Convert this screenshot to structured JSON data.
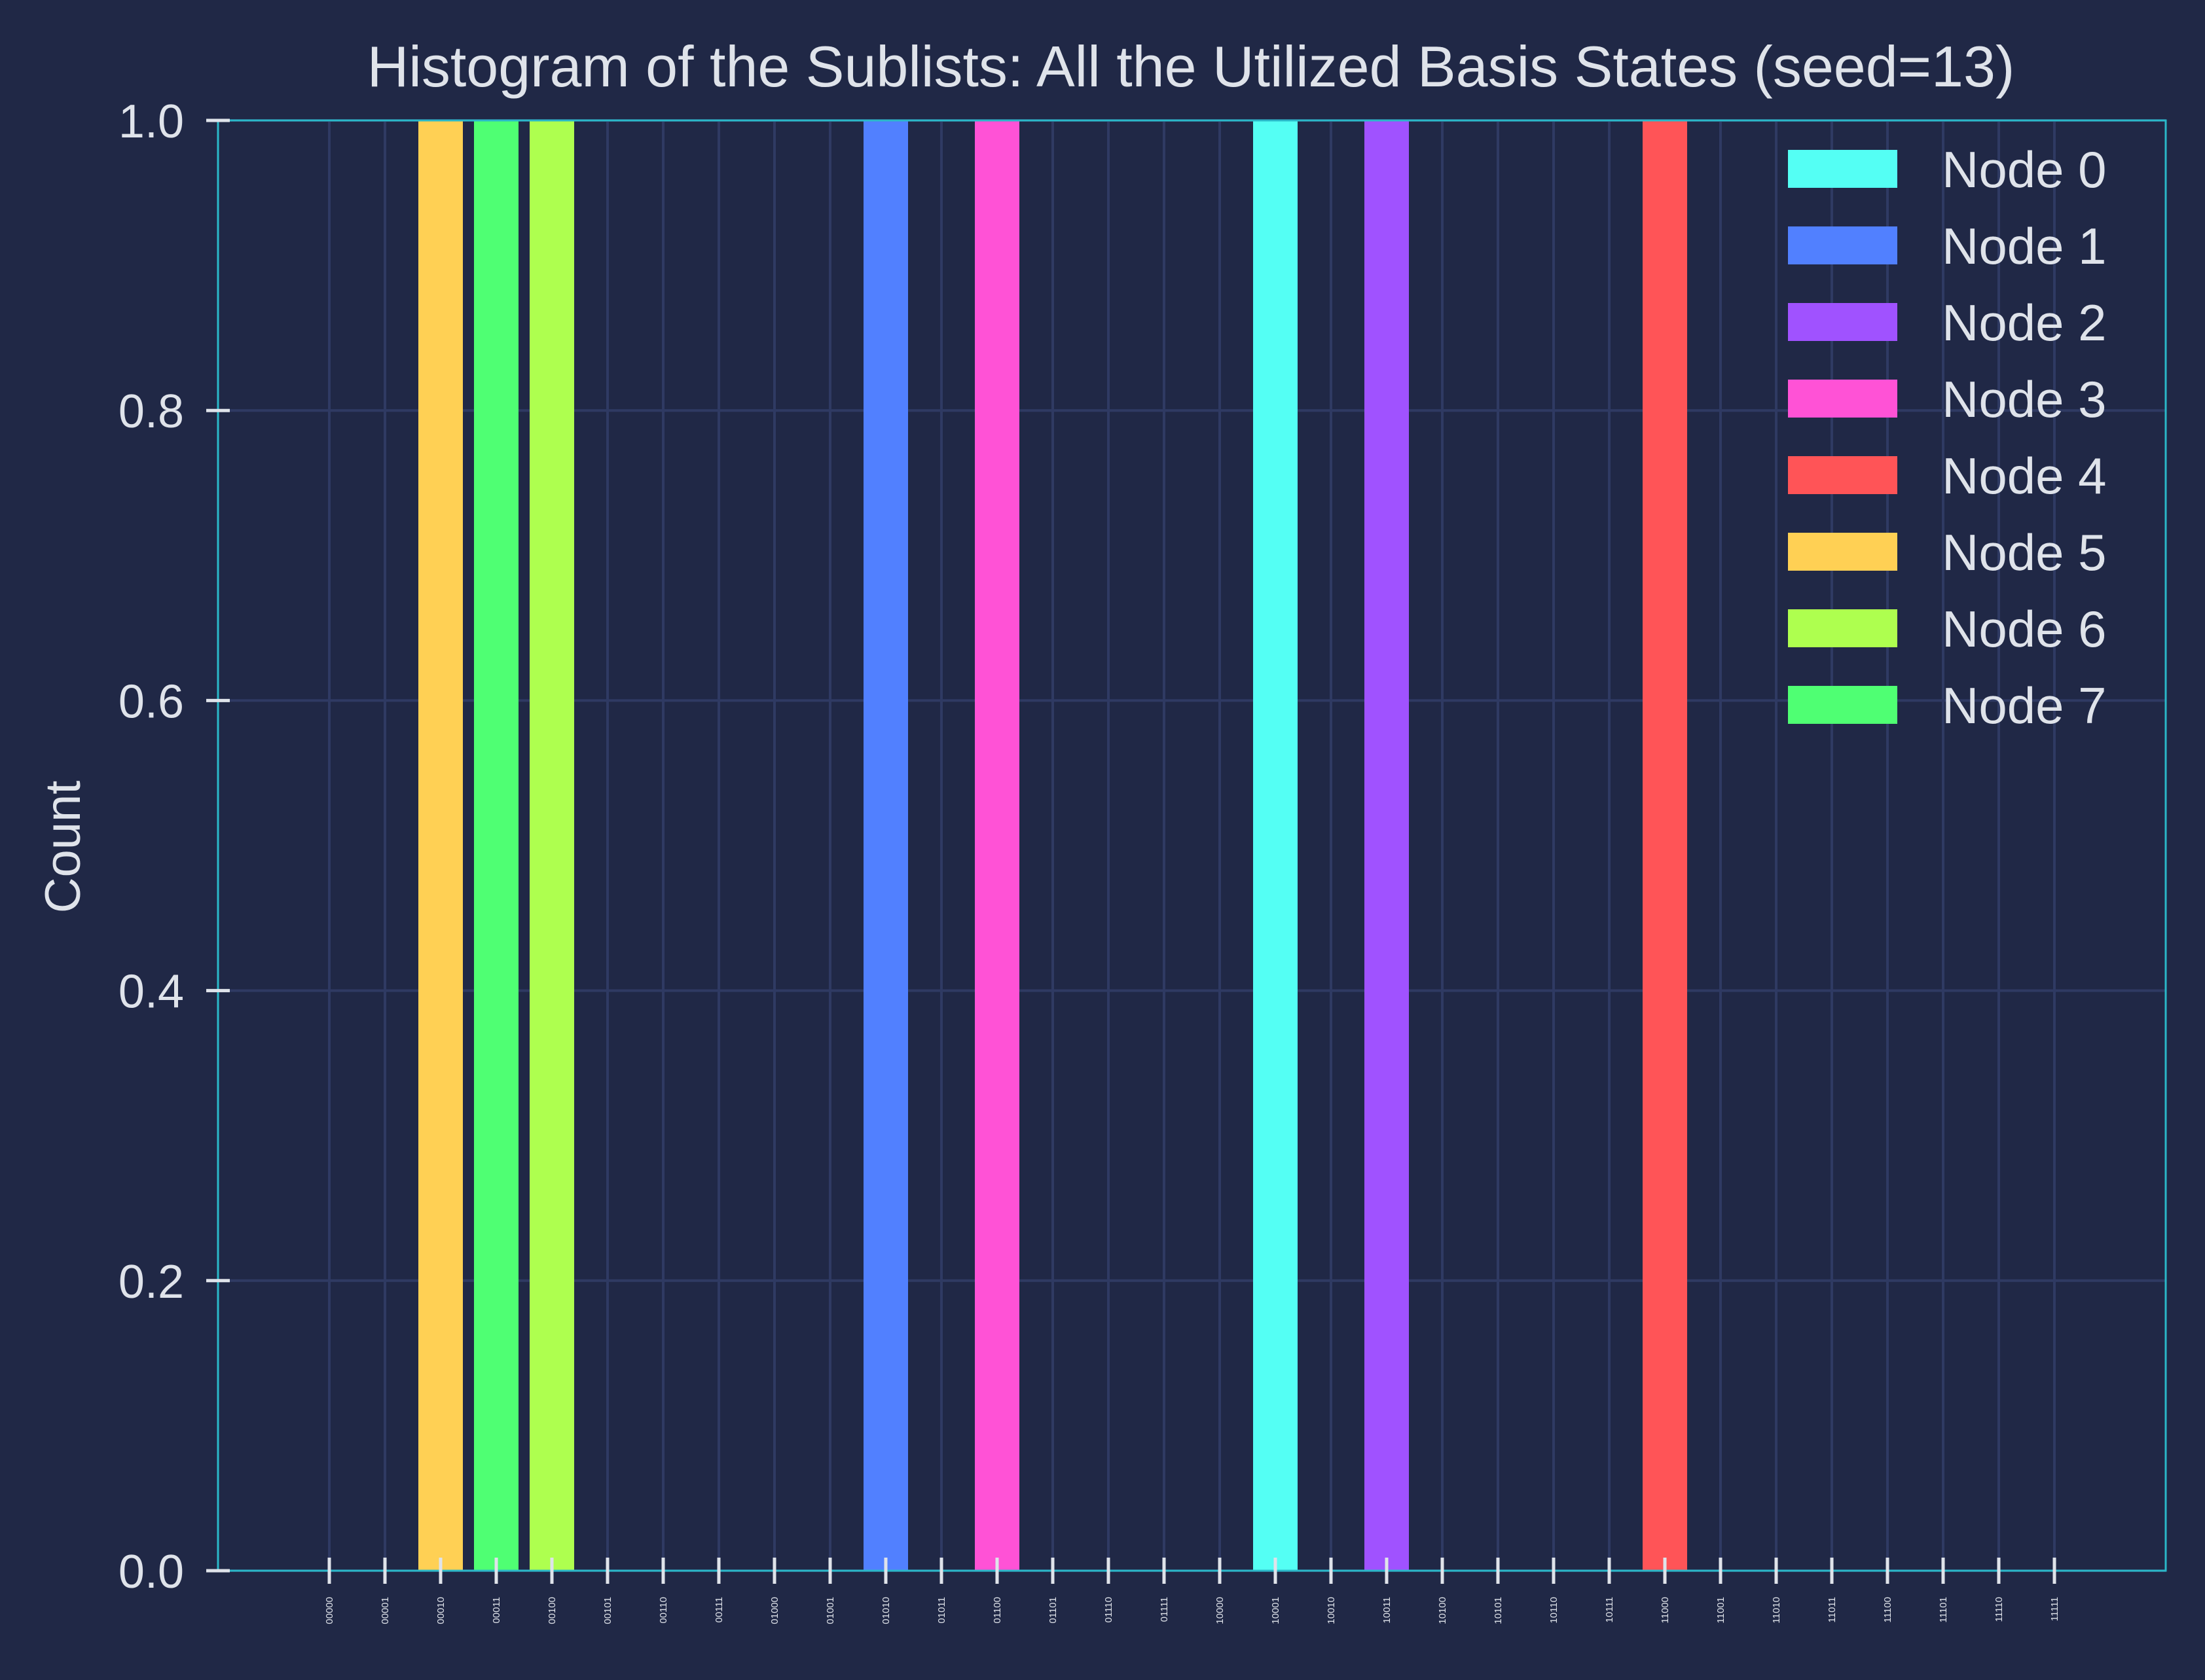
{
  "chart_data": {
    "type": "bar",
    "title": "Histogram of the Sublists: All the Utilized Basis States (seed=13)",
    "xlabel": "",
    "ylabel": "Count",
    "ylim": [
      0,
      1.0
    ],
    "yticks": [
      "0.0",
      "0.2",
      "0.4",
      "0.6",
      "0.8",
      "1.0"
    ],
    "grid": true,
    "legend_position": "top-right",
    "categories": [
      "00000",
      "00001",
      "00010",
      "00011",
      "00100",
      "00101",
      "00110",
      "00111",
      "01000",
      "01001",
      "01010",
      "01011",
      "01100",
      "01101",
      "01110",
      "01111",
      "10000",
      "10001",
      "10010",
      "10011",
      "10100",
      "10101",
      "10110",
      "10111",
      "11000",
      "11001",
      "11010",
      "11011",
      "11100",
      "11101",
      "11110",
      "11111"
    ],
    "series": [
      {
        "name": "Node 0",
        "color": "#54fff4",
        "values": {
          "10001": 1
        }
      },
      {
        "name": "Node 1",
        "color": "#5180ff",
        "values": {
          "01010": 1
        }
      },
      {
        "name": "Node 2",
        "color": "#a052ff",
        "values": {
          "10011": 1
        }
      },
      {
        "name": "Node 3",
        "color": "#ff52d6",
        "values": {
          "01100": 1
        }
      },
      {
        "name": "Node 4",
        "color": "#ff5457",
        "values": {
          "11000": 1
        }
      },
      {
        "name": "Node 5",
        "color": "#ffd054",
        "values": {
          "00010": 1
        }
      },
      {
        "name": "Node 6",
        "color": "#aeff4f",
        "values": {
          "00100": 1
        }
      },
      {
        "name": "Node 7",
        "color": "#4fff73",
        "values": {
          "00011": 1
        }
      }
    ]
  },
  "colors": {
    "background": "#202846",
    "axes_edge": "#2ab8c8",
    "grid": "#2f3a63",
    "text": "#dfe3ea"
  }
}
